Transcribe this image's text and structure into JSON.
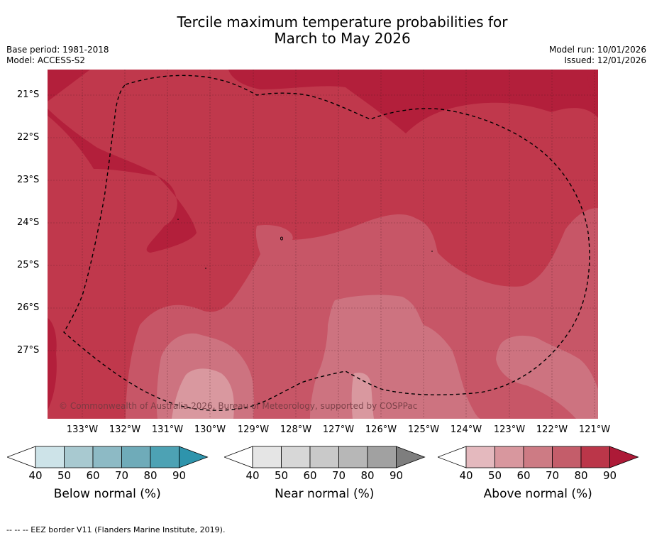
{
  "title_line1": "Tercile maximum temperature probabilities for",
  "title_line2": "March to May 2026",
  "base_period": "Base period: 1981-2018",
  "model": "Model: ACCESS-S2",
  "model_run": "Model run: 10/01/2026",
  "issued": "Issued: 12/01/2026",
  "copyright": "© Commonwealth of Australia 2026, Bureau of Meteorology, supported by COSPPac",
  "lat_labels": [
    "21°S",
    "22°S",
    "23°S",
    "24°S",
    "25°S",
    "26°S",
    "27°S"
  ],
  "lon_labels": [
    "133°W",
    "132°W",
    "131°W",
    "130°W",
    "129°W",
    "128°W",
    "127°W",
    "126°W",
    "125°W",
    "124°W",
    "123°W",
    "122°W",
    "121°W"
  ],
  "colorbars": [
    {
      "label": "Below normal (%)",
      "ticks": [
        "40",
        "50",
        "60",
        "70",
        "80",
        "90"
      ],
      "colors": [
        "#cde3e8",
        "#a8c9d0",
        "#8dbac5",
        "#6fabb9",
        "#4da2b4",
        "#2e94ac"
      ]
    },
    {
      "label": "Near normal (%)",
      "ticks": [
        "40",
        "50",
        "60",
        "70",
        "80",
        "90"
      ],
      "colors": [
        "#e5e5e5",
        "#d7d7d7",
        "#c9c9c9",
        "#b7b7b7",
        "#a1a1a1",
        "#7e7e7e"
      ]
    },
    {
      "label": "Above normal (%)",
      "ticks": [
        "40",
        "50",
        "60",
        "70",
        "80",
        "90"
      ],
      "colors": [
        "#e4b9be",
        "#d8979e",
        "#cd7b84",
        "#c45d6a",
        "#bb3649",
        "#ad1a37"
      ]
    }
  ],
  "footer": "--  --  -- EEZ border V11 (Flanders Marine Institute, 2019)."
}
